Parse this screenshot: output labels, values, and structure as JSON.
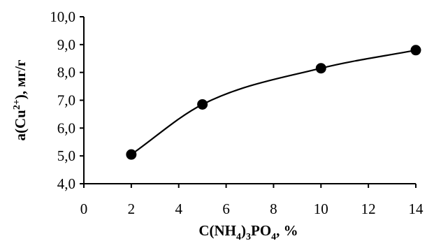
{
  "chart_data": {
    "type": "line",
    "title": "",
    "xlabel": {
      "prefix": "C(NH",
      "sub1": "4",
      "mid1": ")",
      "sub2": "3",
      "mid2": "PO",
      "sub3": "4",
      "suffix": ", %"
    },
    "ylabel": {
      "prefix": "a(Cu",
      "sup": "2+",
      "suffix": "), мг/г"
    },
    "xlim": [
      0,
      14
    ],
    "ylim": [
      4.0,
      10.0
    ],
    "x_ticks": [
      0,
      2,
      4,
      6,
      8,
      10,
      12,
      14
    ],
    "x_tick_labels": [
      "0",
      "2",
      "4",
      "6",
      "8",
      "10",
      "12",
      "14"
    ],
    "y_ticks": [
      4.0,
      5.0,
      6.0,
      7.0,
      8.0,
      9.0,
      10.0
    ],
    "y_tick_labels": [
      "4,0",
      "5,0",
      "6,0",
      "7,0",
      "8,0",
      "9,0",
      "10,0"
    ],
    "grid": false,
    "legend": "none",
    "smooth": true,
    "series": [
      {
        "x": [
          2,
          5,
          10,
          14
        ],
        "values": [
          5.05,
          6.85,
          8.15,
          8.8
        ],
        "marker": "circle",
        "color": "#000000"
      }
    ]
  }
}
